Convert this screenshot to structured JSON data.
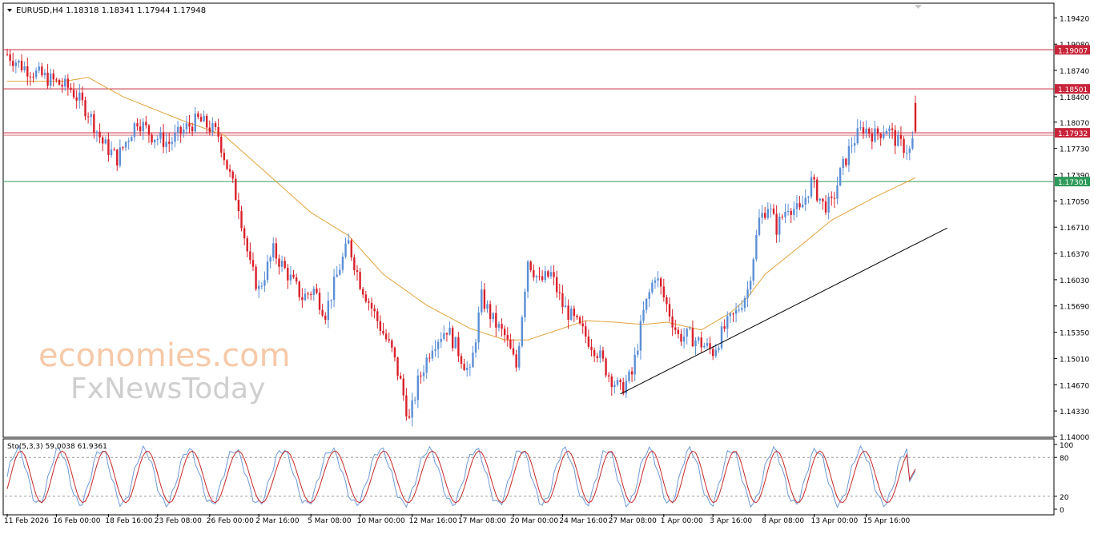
{
  "symbol_header": "EURUSD,H4  1.18318 1.18341 1.17944 1.17948",
  "watermark": {
    "line1": "economies.com",
    "line2": "FxNewsToday"
  },
  "colors": {
    "bull": "#5b8fd6",
    "bear": "#d9202a",
    "ma": "#e3a33b",
    "resistance": "#c8243a",
    "support": "#2e9a5a",
    "trendline": "#000000",
    "stoch_main": "#6f9ad8",
    "stoch_signal": "#c62828"
  },
  "chart_data": [
    {
      "type": "candlestick",
      "title": "EURUSD,H4",
      "ohlc_last": {
        "open": "1.18318",
        "high": "1.18341",
        "low": "1.17944",
        "close": "1.17948"
      },
      "ylim": [
        1.14,
        1.196
      ],
      "y_ticks": [
        "1.19420",
        "1.19080",
        "1.18740",
        "1.18400",
        "1.18070",
        "1.17730",
        "1.17390",
        "1.17050",
        "1.16710",
        "1.16370",
        "1.16030",
        "1.15690",
        "1.15350",
        "1.15010",
        "1.14670",
        "1.14330",
        "1.14000"
      ],
      "x_ticks": [
        "11 Feb 2026",
        "16 Feb 00:00",
        "18 Feb 16:00",
        "23 Feb 08:00",
        "26 Feb 00:00",
        "2 Mar 16:00",
        "5 Mar 08:00",
        "10 Mar 00:00",
        "12 Mar 16:00",
        "17 Mar 08:00",
        "20 Mar 00:00",
        "24 Mar 16:00",
        "27 Mar 08:00",
        "1 Apr 00:00",
        "3 Apr 16:00",
        "8 Apr 08:00",
        "13 Apr 00:00",
        "15 Apr 16:00"
      ],
      "horizontal_levels": [
        {
          "label": "1.19007",
          "value": 1.19007,
          "color": "resistance"
        },
        {
          "label": "1.18501",
          "value": 1.18501,
          "color": "resistance"
        },
        {
          "label": "1.17932",
          "value": 1.17932,
          "color": "resistance"
        },
        {
          "label": "1.17301",
          "value": 1.17301,
          "color": "support"
        }
      ],
      "close_anchors": [
        [
          0,
          1.1895
        ],
        [
          5,
          1.188
        ],
        [
          10,
          1.187
        ],
        [
          16,
          1.186
        ],
        [
          22,
          1.185
        ],
        [
          28,
          1.182
        ],
        [
          33,
          1.178
        ],
        [
          38,
          1.176
        ],
        [
          45,
          1.181
        ],
        [
          50,
          1.179
        ],
        [
          56,
          1.178
        ],
        [
          62,
          1.18
        ],
        [
          66,
          1.181
        ],
        [
          70,
          1.18
        ],
        [
          73,
          1.179
        ],
        [
          76,
          1.175
        ],
        [
          80,
          1.17
        ],
        [
          84,
          1.162
        ],
        [
          87,
          1.159
        ],
        [
          92,
          1.164
        ],
        [
          97,
          1.161
        ],
        [
          102,
          1.158
        ],
        [
          106,
          1.159
        ],
        [
          110,
          1.156
        ],
        [
          115,
          1.162
        ],
        [
          118,
          1.165
        ],
        [
          122,
          1.16
        ],
        [
          128,
          1.155
        ],
        [
          133,
          1.151
        ],
        [
          136,
          1.147
        ],
        [
          139,
          1.142
        ],
        [
          142,
          1.147
        ],
        [
          147,
          1.152
        ],
        [
          152,
          1.154
        ],
        [
          156,
          1.151
        ],
        [
          160,
          1.148
        ],
        [
          164,
          1.158
        ],
        [
          168,
          1.155
        ],
        [
          172,
          1.153
        ],
        [
          176,
          1.149
        ],
        [
          180,
          1.163
        ],
        [
          184,
          1.16
        ],
        [
          188,
          1.161
        ],
        [
          192,
          1.157
        ],
        [
          196,
          1.155
        ],
        [
          200,
          1.153
        ],
        [
          204,
          1.151
        ],
        [
          208,
          1.148
        ],
        [
          212,
          1.146
        ],
        [
          216,
          1.148
        ],
        [
          220,
          1.156
        ],
        [
          224,
          1.161
        ],
        [
          228,
          1.157
        ],
        [
          232,
          1.153
        ],
        [
          236,
          1.153
        ],
        [
          240,
          1.152
        ],
        [
          244,
          1.151
        ],
        [
          248,
          1.154
        ],
        [
          252,
          1.156
        ],
        [
          256,
          1.159
        ],
        [
          260,
          1.168
        ],
        [
          263,
          1.17
        ],
        [
          266,
          1.167
        ],
        [
          270,
          1.17
        ],
        [
          274,
          1.169
        ],
        [
          278,
          1.173
        ],
        [
          282,
          1.17
        ],
        [
          285,
          1.17
        ],
        [
          288,
          1.174
        ],
        [
          292,
          1.178
        ],
        [
          296,
          1.18
        ],
        [
          300,
          1.179
        ],
        [
          304,
          1.18
        ],
        [
          308,
          1.178
        ],
        [
          312,
          1.177
        ],
        [
          314,
          1.1795
        ]
      ],
      "candle_count": 315,
      "ma_anchors": [
        [
          0,
          1.186
        ],
        [
          20,
          1.186
        ],
        [
          28,
          1.1865
        ],
        [
          40,
          1.184
        ],
        [
          60,
          1.181
        ],
        [
          75,
          1.179
        ],
        [
          90,
          1.174
        ],
        [
          105,
          1.169
        ],
        [
          118,
          1.166
        ],
        [
          130,
          1.161
        ],
        [
          145,
          1.157
        ],
        [
          160,
          1.154
        ],
        [
          172,
          1.1525
        ],
        [
          180,
          1.1525
        ],
        [
          192,
          1.154
        ],
        [
          200,
          1.155
        ],
        [
          210,
          1.1548
        ],
        [
          220,
          1.1545
        ],
        [
          228,
          1.1548
        ],
        [
          240,
          1.1538
        ],
        [
          250,
          1.156
        ],
        [
          256,
          1.158
        ],
        [
          262,
          1.161
        ],
        [
          272,
          1.164
        ],
        [
          285,
          1.168
        ],
        [
          300,
          1.171
        ],
        [
          314,
          1.1735
        ]
      ],
      "trendline": {
        "from": [
          212,
          1.1455
        ],
        "to": [
          325,
          1.167
        ]
      }
    },
    {
      "type": "line",
      "title": "Sto(5,3,3) 59.0038 61.9361",
      "ylim": [
        0,
        100
      ],
      "y_ticks": [
        "100",
        "80",
        "20",
        "0"
      ],
      "levels": [
        80,
        20
      ],
      "series": [
        {
          "name": "main",
          "color": "stoch_main",
          "amplitude": 42,
          "period": 15.5
        },
        {
          "name": "signal",
          "color": "stoch_signal",
          "amplitude": 40,
          "period": 15.5
        }
      ],
      "last_values": [
        59.0038,
        61.9361
      ]
    }
  ]
}
